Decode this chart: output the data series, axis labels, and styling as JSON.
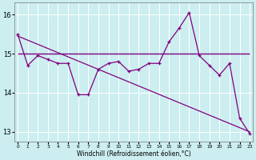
{
  "xlabel": "Windchill (Refroidissement éolien,°C)",
  "background_color": "#cceef0",
  "grid_color": "#ffffff",
  "line_color": "#800080",
  "x_values": [
    0,
    1,
    2,
    3,
    4,
    5,
    6,
    7,
    8,
    9,
    10,
    11,
    12,
    13,
    14,
    15,
    16,
    17,
    18,
    19,
    20,
    21,
    22,
    23
  ],
  "series_wiggly": [
    15.5,
    14.7,
    14.95,
    14.85,
    14.75,
    14.75,
    13.95,
    13.95,
    14.6,
    14.75,
    14.8,
    14.55,
    14.6,
    14.75,
    14.75,
    15.3,
    15.65,
    16.05,
    14.95,
    14.7,
    14.45,
    14.75,
    13.35,
    12.95
  ],
  "hline_y": 15.0,
  "diag_start": 15.45,
  "diag_end": 13.0,
  "ylim": [
    12.75,
    16.3
  ],
  "yticks": [
    13,
    14,
    15,
    16
  ],
  "xlim": [
    -0.3,
    23.3
  ]
}
